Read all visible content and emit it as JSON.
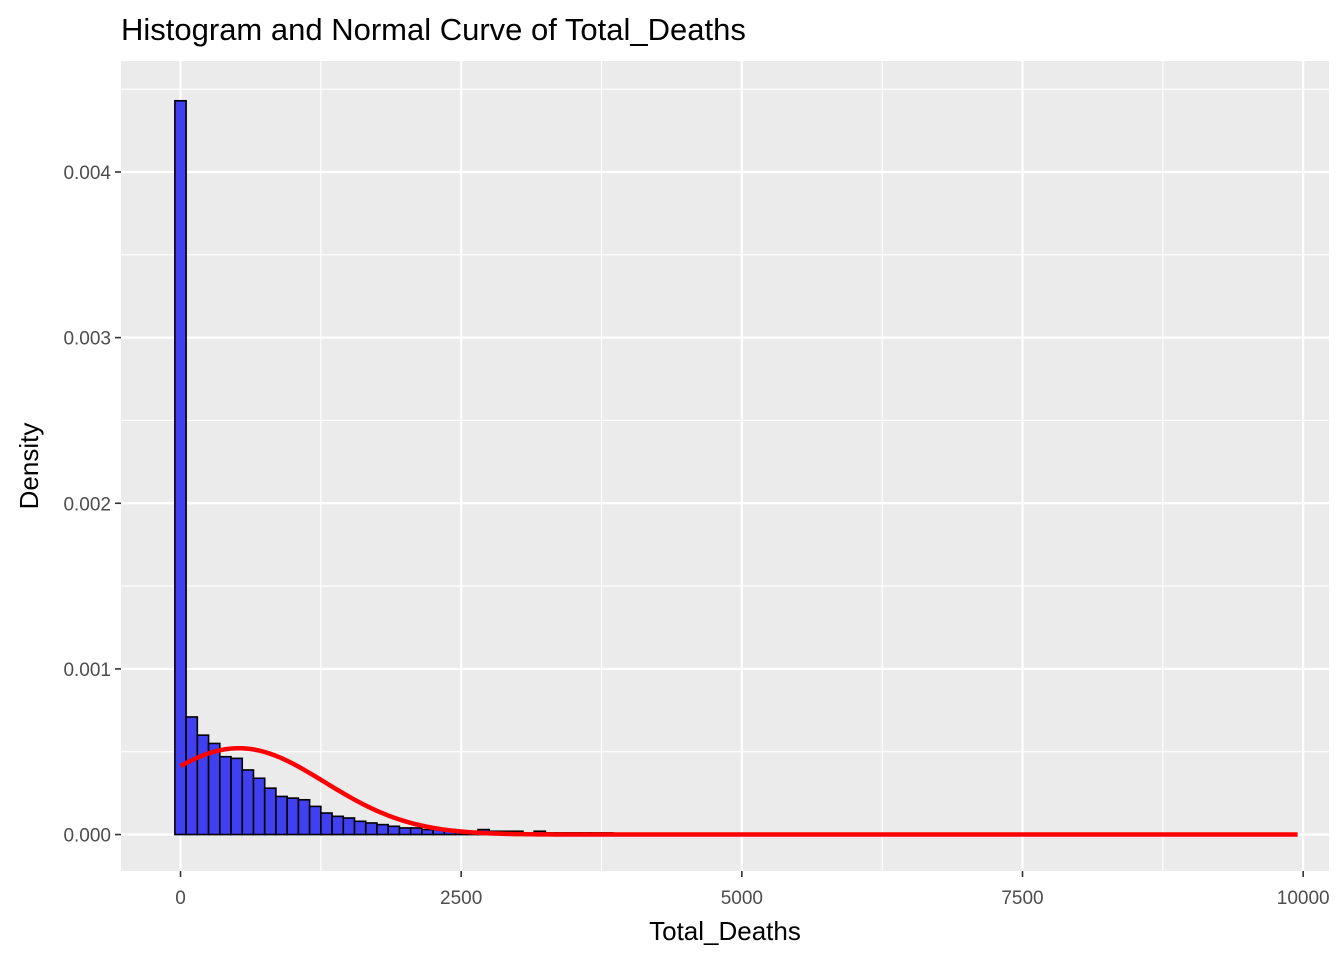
{
  "chart_data": {
    "type": "bar",
    "title": "Histogram and Normal Curve of Total_Deaths",
    "xlabel": "Total_Deaths",
    "ylabel": "Density",
    "xlim": [
      -530,
      10230
    ],
    "ylim": [
      -0.00022,
      0.00467
    ],
    "x_ticks": [
      0,
      2500,
      5000,
      7500,
      10000
    ],
    "x_tick_labels": [
      "0",
      "2500",
      "5000",
      "7500",
      "10000"
    ],
    "y_ticks": [
      0,
      0.001,
      0.002,
      0.003,
      0.004
    ],
    "y_tick_labels": [
      "0.000",
      "0.001",
      "0.002",
      "0.003",
      "0.004"
    ],
    "grid": true,
    "colors": {
      "panel": "#ebebeb",
      "grid": "#ffffff",
      "bar_fill": "#4040f0",
      "bar_outline": "#000000",
      "curve": "#ff0000"
    },
    "histogram": {
      "bin_width": 100,
      "bins_start": -50,
      "densities": [
        0.00443,
        0.00071,
        0.0006,
        0.00055,
        0.00047,
        0.00046,
        0.00039,
        0.00034,
        0.00028,
        0.00023,
        0.00022,
        0.00021,
        0.00017,
        0.00013,
        0.00011,
        0.0001,
        8e-05,
        7e-05,
        6e-05,
        5e-05,
        4e-05,
        4e-05,
        3e-05,
        3e-05,
        3e-05,
        2e-05,
        2e-05,
        3e-05,
        2e-05,
        2e-05,
        2e-05,
        1e-05,
        2e-05,
        1e-05,
        1e-05,
        1e-05,
        1e-05,
        1e-05,
        1e-05,
        0.0,
        0.0,
        0.0,
        0.0,
        0.0,
        0.0,
        0.0,
        0.0,
        0.0,
        0.0,
        0.0,
        0.0,
        0.0,
        0.0,
        0.0,
        0.0,
        0.0,
        0.0,
        0.0,
        0.0,
        0.0,
        0.0,
        0.0,
        0.0,
        0.0,
        0.0,
        0.0,
        0.0,
        0.0,
        0.0,
        0.0,
        0.0,
        0.0,
        0.0,
        0.0,
        0.0,
        0.0,
        0.0,
        0.0,
        0.0,
        0.0,
        0.0,
        0.0,
        0.0,
        0.0,
        0.0,
        0.0,
        0.0,
        0.0,
        0.0,
        0.0,
        0.0,
        0.0,
        0.0,
        0.0,
        0.0,
        0.0,
        0.0,
        0.0,
        0.0,
        0.0
      ]
    },
    "normal_curve": {
      "mean": 520,
      "sd": 765,
      "x_range": [
        0,
        9950
      ]
    }
  }
}
